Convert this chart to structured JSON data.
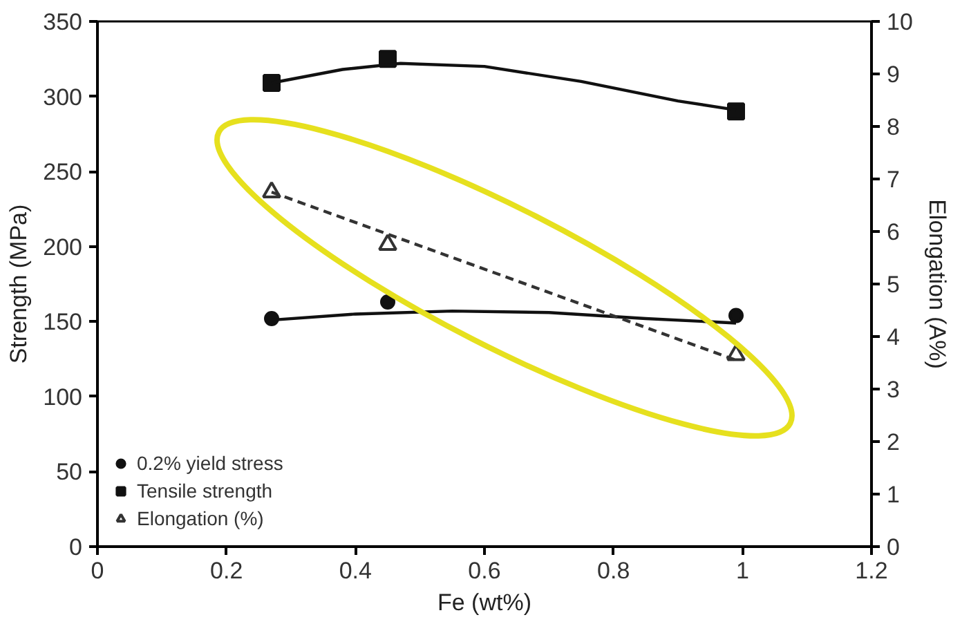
{
  "chart_data": {
    "type": "scatter",
    "xlabel": "Fe (wt%)",
    "ylabel": "Strength (MPa)",
    "y2label": "Elongation (A%)",
    "xlim": [
      0,
      1.2
    ],
    "xticks": [
      0,
      0.2,
      0.4,
      0.6,
      0.8,
      1,
      1.2
    ],
    "ylim": [
      0,
      350
    ],
    "yticks": [
      0,
      50,
      100,
      150,
      200,
      250,
      300,
      350
    ],
    "y2lim": [
      0,
      10
    ],
    "y2ticks": [
      0,
      1,
      2,
      3,
      4,
      5,
      6,
      7,
      8,
      9,
      10
    ],
    "grid": false,
    "legend": "bottom left",
    "series": [
      {
        "name": "0.2% yield stress",
        "marker": "circle",
        "color": "#111111",
        "x": [
          0.27,
          0.45,
          0.99
        ],
        "values": [
          152,
          163,
          154
        ]
      },
      {
        "name": "Tensile strength",
        "marker": "square",
        "color": "#111111",
        "x": [
          0.27,
          0.45,
          0.99
        ],
        "values": [
          309,
          325,
          290
        ]
      },
      {
        "name": "Elongation (%)",
        "marker": "triangle",
        "color": "#333333",
        "axis": "y2",
        "x": [
          0.27,
          0.45,
          0.99
        ],
        "values": [
          6.75,
          5.75,
          3.65
        ]
      },
      {
        "type": "line",
        "marker": "none",
        "line_style": "solid",
        "color": "#111111",
        "x": [
          0.27,
          0.4,
          0.55,
          0.7,
          0.85,
          0.99
        ],
        "values": [
          151,
          155,
          157,
          156,
          152,
          149
        ]
      },
      {
        "type": "line",
        "marker": "none",
        "line_style": "solid",
        "color": "#111111",
        "x": [
          0.27,
          0.38,
          0.47,
          0.6,
          0.75,
          0.9,
          0.99
        ],
        "values": [
          309,
          318,
          322,
          320,
          310,
          297,
          291
        ]
      },
      {
        "type": "line",
        "marker": "none",
        "line_style": "dashed",
        "color": "#333333",
        "axis": "y2",
        "x": [
          0.27,
          0.99
        ],
        "values": [
          6.75,
          3.55
        ]
      }
    ]
  }
}
